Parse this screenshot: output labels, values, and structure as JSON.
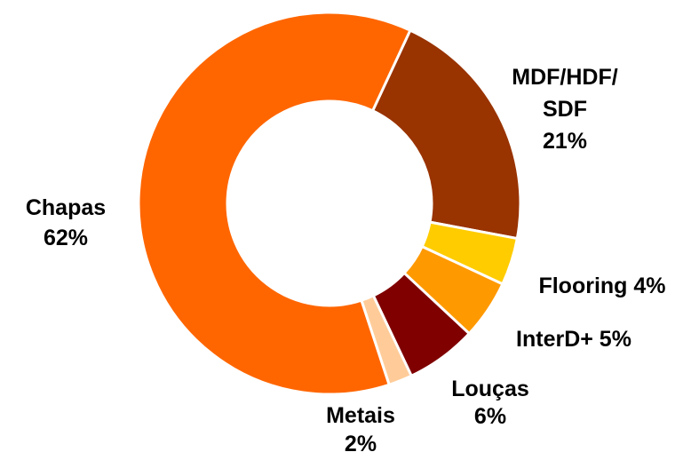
{
  "chart_data": {
    "type": "pie",
    "variant": "donut",
    "title": "",
    "legend": "none",
    "slices": [
      {
        "name": "MDF/HDF/ SDF",
        "value": 21,
        "color": "#993300",
        "label_lines": [
          "MDF/HDF/",
          "SDF",
          "21%"
        ]
      },
      {
        "name": "Flooring",
        "value": 4,
        "color": "#FFCC00",
        "label_lines": [
          "Flooring 4%"
        ]
      },
      {
        "name": "InterD+",
        "value": 5,
        "color": "#FF9900",
        "label_lines": [
          "InterD+ 5%"
        ]
      },
      {
        "name": "Louças",
        "value": 6,
        "color": "#800000",
        "label_lines": [
          "Louças",
          "6%"
        ]
      },
      {
        "name": "Metais",
        "value": 2,
        "color": "#FFCC99",
        "label_lines": [
          "Metais",
          "2%"
        ]
      },
      {
        "name": "Chapas",
        "value": 62,
        "color": "#FF6600",
        "label_lines": [
          "Chapas",
          "62%"
        ]
      }
    ]
  }
}
